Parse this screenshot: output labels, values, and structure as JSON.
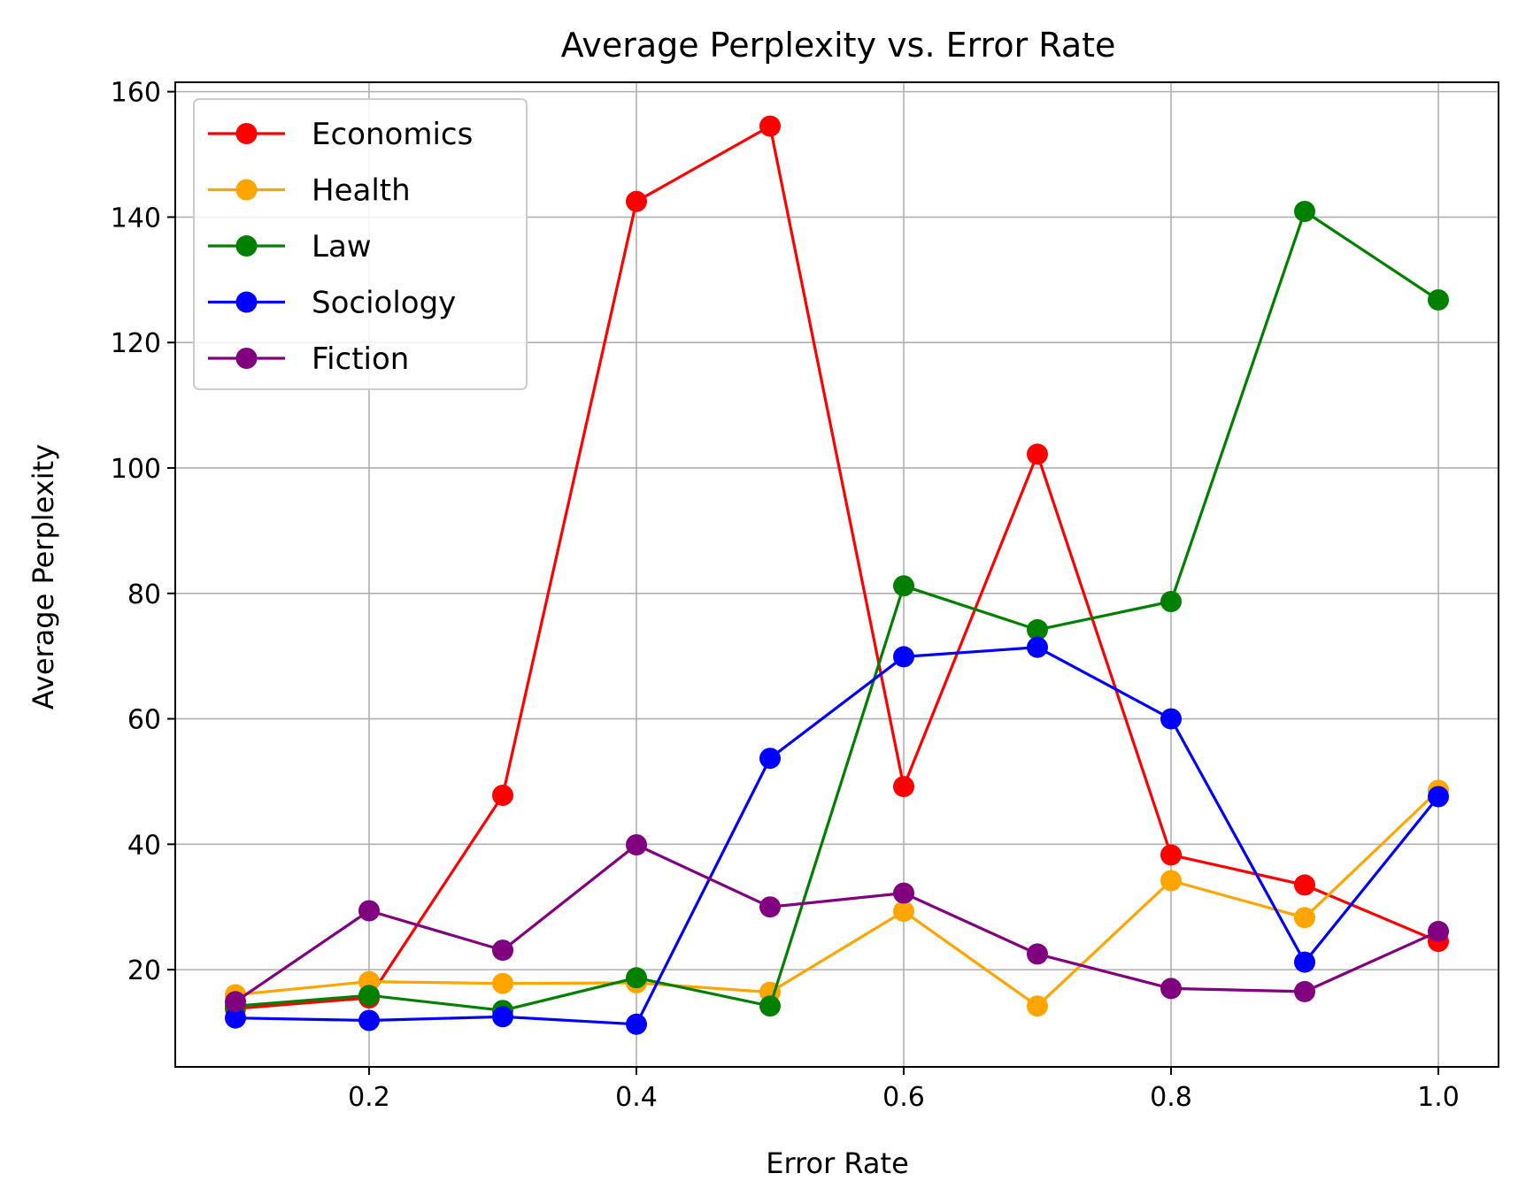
{
  "chart_data": {
    "type": "line",
    "title": "Average Perplexity vs. Error Rate",
    "xlabel": "Error Rate",
    "ylabel": "Average Perplexity",
    "x": [
      0.1,
      0.2,
      0.3,
      0.4,
      0.5,
      0.6,
      0.7,
      0.8,
      0.9,
      1.0
    ],
    "xlim": [
      0.055,
      1.045
    ],
    "ylim": [
      4.5,
      161.5
    ],
    "xticks": [
      0.2,
      0.4,
      0.6,
      0.8,
      1.0
    ],
    "xtick_labels": [
      "0.2",
      "0.4",
      "0.6",
      "0.8",
      "1.0"
    ],
    "yticks": [
      20,
      40,
      60,
      80,
      100,
      120,
      140,
      160
    ],
    "ytick_labels": [
      "20",
      "40",
      "60",
      "80",
      "100",
      "120",
      "140",
      "160"
    ],
    "grid": true,
    "legend_position": "top-left",
    "series": [
      {
        "name": "Economics",
        "color": "#ff0000",
        "values": [
          13.8,
          15.5,
          47.8,
          142.5,
          154.5,
          49.2,
          102.2,
          38.3,
          33.5,
          24.5
        ]
      },
      {
        "name": "Health",
        "color": "#ffa500",
        "values": [
          16.0,
          18.1,
          17.8,
          17.9,
          16.4,
          29.3,
          14.2,
          34.2,
          28.3,
          48.6
        ]
      },
      {
        "name": "Law",
        "color": "#008000",
        "values": [
          14.2,
          15.9,
          13.5,
          18.7,
          14.2,
          81.2,
          74.2,
          78.7,
          140.9,
          126.8
        ]
      },
      {
        "name": "Sociology",
        "color": "#0000ff",
        "values": [
          12.3,
          11.9,
          12.5,
          11.3,
          53.7,
          69.9,
          71.4,
          60.0,
          21.2,
          47.6
        ]
      },
      {
        "name": "Fiction",
        "color": "#800080",
        "values": [
          14.9,
          29.4,
          23.1,
          39.9,
          30.0,
          32.2,
          22.5,
          17.0,
          16.5,
          26.1
        ]
      }
    ]
  }
}
